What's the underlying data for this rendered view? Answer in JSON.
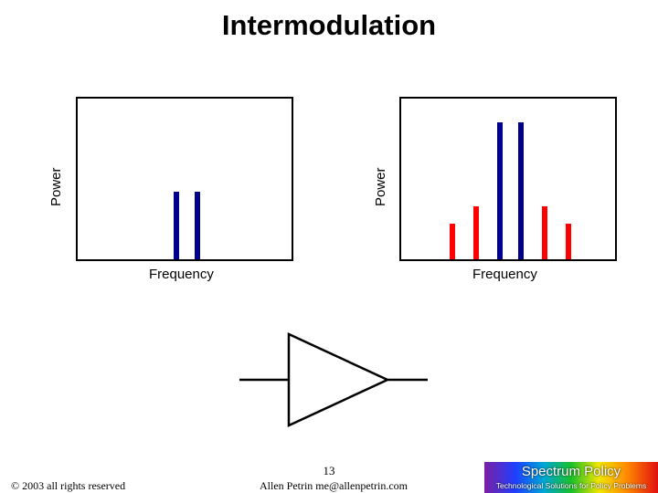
{
  "title": "Intermodulation",
  "chart_data": [
    {
      "type": "bar",
      "xlabel": "Frequency",
      "ylabel": "Power",
      "series": [
        {
          "color": "#00008b",
          "x": [
            0.46,
            0.56
          ],
          "values": [
            0.42,
            0.42
          ]
        }
      ],
      "ylim": [
        0,
        1
      ],
      "xlim": [
        0,
        1
      ]
    },
    {
      "type": "bar",
      "xlabel": "Frequency",
      "ylabel": "Power",
      "series": [
        {
          "color": "#00008b",
          "x": [
            0.46,
            0.56
          ],
          "values": [
            0.85,
            0.85
          ]
        },
        {
          "color": "#ff0000",
          "x": [
            0.24,
            0.35,
            0.67,
            0.78
          ],
          "values": [
            0.22,
            0.33,
            0.33,
            0.22
          ]
        }
      ],
      "ylim": [
        0,
        1
      ],
      "xlim": [
        0,
        1
      ]
    }
  ],
  "footer": {
    "copyright": "© 2003 all rights reserved",
    "page_number": "13",
    "author": "Allen Petrin  me@allenpetrin.com",
    "logo_title": "Spectrum Policy",
    "logo_subtitle": "Technological Solutions for Policy Problems"
  }
}
